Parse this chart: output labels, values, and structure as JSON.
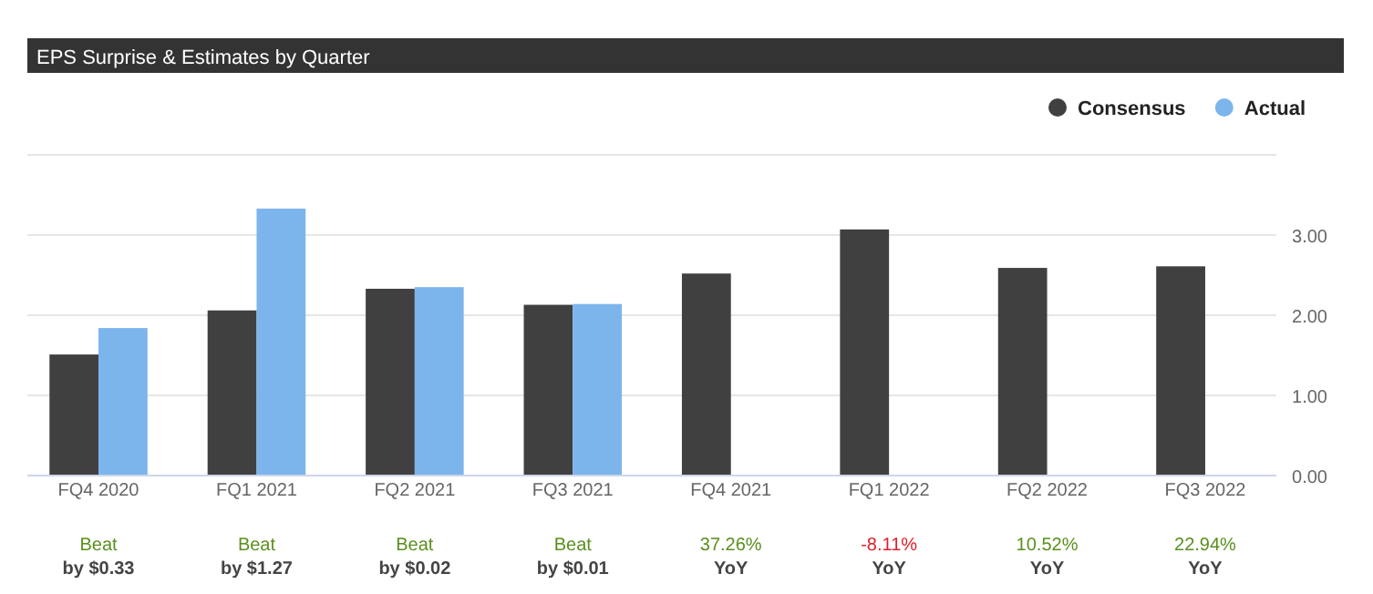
{
  "chart_data": {
    "type": "bar",
    "title": "EPS Surprise & Estimates by Quarter",
    "categories": [
      "FQ4 2020",
      "FQ1 2021",
      "FQ2 2021",
      "FQ3 2021",
      "FQ4 2021",
      "FQ1 2022",
      "FQ2 2022",
      "FQ3 2022"
    ],
    "series": [
      {
        "name": "Consensus",
        "color": "#404040",
        "values": [
          1.51,
          2.06,
          2.33,
          2.13,
          2.52,
          3.07,
          2.59,
          2.61
        ]
      },
      {
        "name": "Actual",
        "color": "#7cb5ec",
        "values": [
          1.84,
          3.33,
          2.35,
          2.14,
          null,
          null,
          null,
          null
        ]
      }
    ],
    "ylim": [
      0,
      4
    ],
    "yticks": [
      {
        "value": 0,
        "label": "0.00"
      },
      {
        "value": 1,
        "label": "1.00"
      },
      {
        "value": 2,
        "label": "2.00"
      },
      {
        "value": 3,
        "label": "3.00"
      }
    ],
    "grid": "y",
    "legend": "top right",
    "annotations": [
      "Beat\nby $0.33",
      "Beat\nby $1.27",
      "Beat\nby $0.02",
      "Beat\nby $0.01",
      "37.26%\nYoY",
      "-8.11%\nYoY",
      "10.52%\nYoY",
      "22.94%\nYoY"
    ]
  }
}
